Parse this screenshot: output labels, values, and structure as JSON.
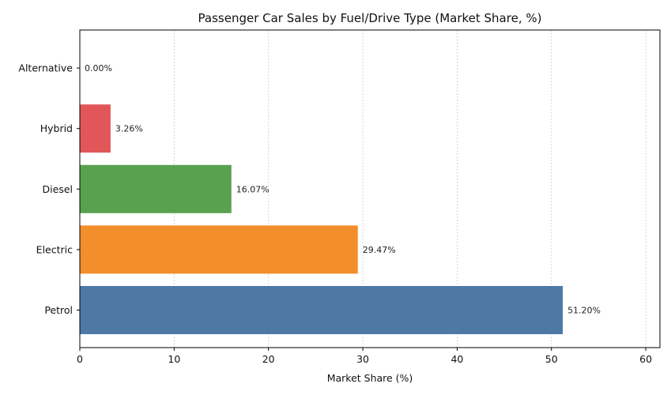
{
  "chart_data": {
    "type": "bar",
    "orientation": "horizontal",
    "title": "Passenger Car Sales by Fuel/Drive Type (Market Share, %)",
    "xlabel": "Market Share (%)",
    "ylabel": "",
    "xlim": [
      0,
      61.5
    ],
    "xticks": [
      0,
      10,
      20,
      30,
      40,
      50,
      60
    ],
    "grid": true,
    "categories": [
      "Petrol",
      "Electric",
      "Diesel",
      "Hybrid",
      "Alternative"
    ],
    "values": [
      51.2,
      29.47,
      16.07,
      3.26,
      0.0
    ],
    "data_labels": [
      "51.20%",
      "29.47%",
      "16.07%",
      "3.26%",
      "0.00%"
    ],
    "colors": [
      "#4e79a7",
      "#f28e2b",
      "#59a14f",
      "#e15759",
      "#76b7b2"
    ]
  }
}
